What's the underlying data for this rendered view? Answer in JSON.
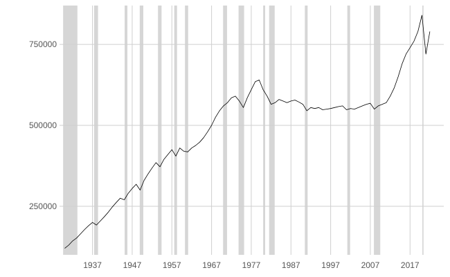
{
  "chart_data": {
    "type": "line",
    "title": "",
    "xlabel": "",
    "ylabel": "",
    "xlim": [
      1928.7,
      2025.5
    ],
    "ylim": [
      100000,
      870000
    ],
    "x_ticks": [
      1937,
      1947,
      1957,
      1967,
      1977,
      1987,
      1997,
      2007,
      2017
    ],
    "x_tick_labels": [
      "1937",
      "1947",
      "1957",
      "1967",
      "1977",
      "1987",
      "1997",
      "2007",
      "2017"
    ],
    "y_ticks": [
      250000,
      500000,
      750000
    ],
    "y_tick_labels": [
      "250000",
      "500000",
      "750000"
    ],
    "grid": true,
    "legend": "none",
    "recessions": [
      [
        1929.6,
        1933.2
      ],
      [
        1937.4,
        1938.4
      ],
      [
        1945.1,
        1945.8
      ],
      [
        1948.9,
        1949.8
      ],
      [
        1953.5,
        1954.4
      ],
      [
        1957.6,
        1958.3
      ],
      [
        1960.3,
        1961.1
      ],
      [
        1969.9,
        1970.9
      ],
      [
        1973.8,
        1975.2
      ],
      [
        1980.0,
        1980.5
      ],
      [
        1981.5,
        1982.9
      ],
      [
        1990.5,
        1991.2
      ],
      [
        2001.2,
        2001.9
      ],
      [
        2007.9,
        2009.5
      ],
      [
        2020.1,
        2020.4
      ]
    ],
    "series": [
      {
        "values_note_free": true,
        "x": [
          1930,
          1931,
          1932,
          1933,
          1934,
          1935,
          1936,
          1937,
          1938,
          1939,
          1940,
          1941,
          1942,
          1943,
          1944,
          1945,
          1946,
          1947,
          1948,
          1949,
          1950,
          1951,
          1952,
          1953,
          1954,
          1955,
          1956,
          1957,
          1958,
          1959,
          1960,
          1961,
          1962,
          1963,
          1964,
          1965,
          1966,
          1967,
          1968,
          1969,
          1970,
          1971,
          1972,
          1973,
          1974,
          1975,
          1976,
          1977,
          1978,
          1979,
          1980,
          1981,
          1982,
          1983,
          1984,
          1985,
          1986,
          1987,
          1988,
          1989,
          1990,
          1991,
          1992,
          1993,
          1994,
          1995,
          1996,
          1997,
          1998,
          1999,
          2000,
          2001,
          2002,
          2003,
          2004,
          2005,
          2006,
          2007,
          2008,
          2009,
          2010,
          2011,
          2012,
          2013,
          2014,
          2015,
          2016,
          2017,
          2018,
          2019,
          2020,
          2021,
          2022
        ],
        "y": [
          120000,
          130000,
          143000,
          152000,
          165000,
          178000,
          190000,
          200000,
          192000,
          205000,
          218000,
          232000,
          248000,
          262000,
          275000,
          270000,
          290000,
          305000,
          318000,
          300000,
          330000,
          350000,
          368000,
          385000,
          372000,
          395000,
          410000,
          425000,
          405000,
          430000,
          420000,
          418000,
          430000,
          438000,
          448000,
          462000,
          480000,
          500000,
          525000,
          545000,
          560000,
          570000,
          585000,
          590000,
          575000,
          555000,
          585000,
          610000,
          635000,
          640000,
          610000,
          590000,
          565000,
          570000,
          580000,
          575000,
          570000,
          575000,
          578000,
          572000,
          565000,
          545000,
          555000,
          552000,
          555000,
          548000,
          550000,
          552000,
          555000,
          558000,
          560000,
          548000,
          552000,
          550000,
          555000,
          560000,
          565000,
          568000,
          550000,
          560000,
          565000,
          570000,
          590000,
          615000,
          650000,
          690000,
          720000,
          740000,
          760000,
          790000,
          840000,
          720000,
          790000
        ]
      }
    ]
  }
}
